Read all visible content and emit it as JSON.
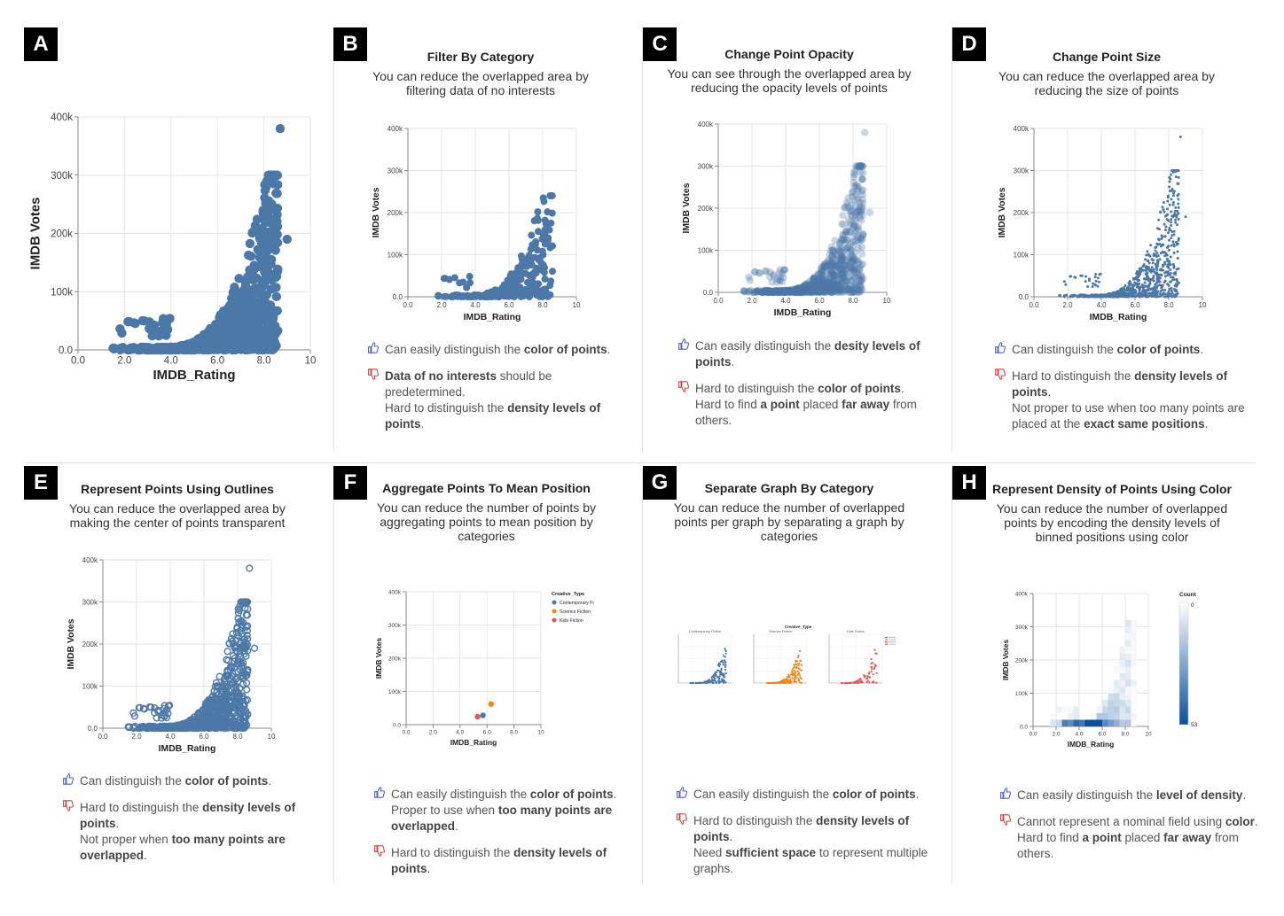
{
  "panels": {
    "A": {
      "badge": "A"
    },
    "B": {
      "badge": "B",
      "title": "Filter By Category",
      "desc1": "You can reduce the overlapped area by",
      "desc2": "filtering data of no interests"
    },
    "C": {
      "badge": "C",
      "title": "Change Point Opacity",
      "desc1": "You can see through the overlapped area by",
      "desc2": "reducing the opacity levels of points"
    },
    "D": {
      "badge": "D",
      "title": "Change Point Size",
      "desc1": "You can reduce the overlapped area by",
      "desc2": "reducing the size of points"
    },
    "E": {
      "badge": "E",
      "title": "Represent Points Using Outlines",
      "desc1": "You can reduce the overlapped area by",
      "desc2": "making the center of points transparent"
    },
    "F": {
      "badge": "F",
      "title": "Aggregate Points To Mean Position",
      "desc1": "You can reduce the number of points by",
      "desc2": "aggregating points to mean position by",
      "desc3": "categories"
    },
    "G": {
      "badge": "G",
      "title": "Separate Graph By Category",
      "desc1": "You can reduce the number of overlapped",
      "desc2": "points per graph by separating a graph by",
      "desc3": "categories"
    },
    "H": {
      "badge": "H",
      "title": "Represent Density of Points Using Color",
      "desc1": "You can reduce the number of overlapped",
      "desc2": "points by encoding the density levels of",
      "desc3": "binned positions using color"
    }
  },
  "notes": {
    "B": [
      {
        "type": "pro",
        "html": "Can easily distinguish the <b>color of points</b>."
      },
      {
        "type": "con",
        "html": "<b>Data of no interests</b> should be predetermined.<br>Hard to distinguish the <b>density levels of points</b>."
      }
    ],
    "C": [
      {
        "type": "pro",
        "html": "Can easily distinguish the <b>desity levels of points</b>."
      },
      {
        "type": "con",
        "html": "Hard to distinguish the <b>color of points</b>.<br>Hard to find <b>a point</b> placed <b>far away</b> from others."
      }
    ],
    "D": [
      {
        "type": "pro",
        "html": "Can distinguish the <b>color of points</b>."
      },
      {
        "type": "con",
        "html": "Hard to distinguish the <b>density levels of points</b>.<br>Not proper to use when too many points are placed at the <b>exact same positions</b>."
      }
    ],
    "E": [
      {
        "type": "pro",
        "html": "Can distinguish the <b>color of points</b>."
      },
      {
        "type": "con",
        "html": "Hard to distinguish the <b>density levels of points</b>.<br>Not proper when <b>too many points are overlapped</b>."
      }
    ],
    "F": [
      {
        "type": "pro",
        "html": "Can easily distinguish the <b>color of points</b>.<br>Proper to use when <b>too many points are overlapped</b>."
      },
      {
        "type": "con",
        "html": "Hard to distinguish the <b>density levels of points</b>."
      }
    ],
    "G": [
      {
        "type": "pro",
        "html": "Can easily distinguish the <b>color of points</b>."
      },
      {
        "type": "con",
        "html": "Hard to distinguish the <b>density levels of points</b>.<br>Need <b>sufficient space</b> to represent multiple graphs."
      }
    ],
    "H": [
      {
        "type": "pro",
        "html": "Can easily distinguish the <b>level of density</b>."
      },
      {
        "type": "con",
        "html": "Cannot represent a nominal field using <b>color</b>.<br>Hard to find <b>a point</b> placed <b>far away</b> from others."
      }
    ]
  },
  "icons": {
    "pro": "thumbs-up-icon",
    "con": "thumbs-down-icon"
  },
  "colors": {
    "point": "#4c78a8",
    "scifi": "#f58518",
    "kids": "#e45756",
    "heat_max": "#08519c",
    "heat_min": "#ffffff"
  },
  "chart_data": [
    {
      "panel": "A",
      "type": "scatter",
      "xlabel": "IMDB_Rating",
      "ylabel": "IMDB Votes",
      "xlim": [
        0,
        10
      ],
      "ylim": [
        0,
        400000
      ],
      "xticks": [
        "0.0",
        "2.0",
        "4.0",
        "6.0",
        "8.0",
        "10"
      ],
      "yticks": [
        "0.0",
        "100k",
        "200k",
        "300k",
        "400k"
      ],
      "highlights": [
        {
          "x": 8.7,
          "y": 380000
        },
        {
          "x": 8.1,
          "y": 280000
        },
        {
          "x": 9.0,
          "y": 190000
        }
      ]
    },
    {
      "panel": "B",
      "type": "scatter",
      "xlabel": "IMDB_Rating",
      "ylabel": "IMDB Votes",
      "xlim": [
        0,
        10
      ],
      "ylim": [
        0,
        400000
      ],
      "xticks": [
        "0.0",
        "2.0",
        "4.0",
        "6.0",
        "8.0",
        "10"
      ],
      "yticks": [
        "0.0",
        "100k",
        "200k",
        "300k",
        "400k"
      ]
    },
    {
      "panel": "C",
      "type": "scatter",
      "xlabel": "IMDB_Rating",
      "ylabel": "IMDB Votes",
      "xlim": [
        0,
        10
      ],
      "ylim": [
        0,
        400000
      ],
      "opacity": 0.3,
      "xticks": [
        "0.0",
        "2.0",
        "4.0",
        "6.0",
        "8.0",
        "10"
      ],
      "yticks": [
        "0.0",
        "100k",
        "200k",
        "300k",
        "400k"
      ]
    },
    {
      "panel": "D",
      "type": "scatter",
      "xlabel": "IMDB_Rating",
      "ylabel": "IMDB Votes",
      "xlim": [
        0,
        10
      ],
      "ylim": [
        0,
        400000
      ],
      "xticks": [
        "0.0",
        "2.0",
        "4.0",
        "6.0",
        "8.0",
        "10"
      ],
      "yticks": [
        "0.0",
        "100k",
        "200k",
        "300k",
        "400k"
      ]
    },
    {
      "panel": "E",
      "type": "scatter",
      "xlabel": "IMDB_Rating",
      "ylabel": "IMDB Votes",
      "xlim": [
        0,
        10
      ],
      "ylim": [
        0,
        400000
      ],
      "filled": false,
      "xticks": [
        "0.0",
        "2.0",
        "4.0",
        "6.0",
        "8.0",
        "10"
      ],
      "yticks": [
        "0.0",
        "100k",
        "200k",
        "300k",
        "400k"
      ]
    },
    {
      "panel": "F",
      "type": "scatter",
      "xlabel": "IMDB_Rating",
      "ylabel": "IMDB Votes",
      "xlim": [
        0,
        10
      ],
      "ylim": [
        0,
        400000
      ],
      "xticks": [
        "0.0",
        "2.0",
        "4.0",
        "6.0",
        "8.0",
        "10"
      ],
      "yticks": [
        "0.0",
        "100k",
        "200k",
        "300k",
        "400k"
      ],
      "legend_title": "Creative_Type",
      "series": [
        {
          "name": "Contemporary Fi",
          "x": 5.7,
          "y": 28000,
          "color": "#4c78a8"
        },
        {
          "name": "Science Fiction",
          "x": 6.3,
          "y": 62000,
          "color": "#f58518"
        },
        {
          "name": "Kids Fiction",
          "x": 5.3,
          "y": 24000,
          "color": "#e45756"
        }
      ]
    },
    {
      "panel": "G",
      "type": "scatter",
      "legend_title": "Creative_Type",
      "facets": [
        "Contemporary Fiction",
        "Science Fiction",
        "Kids Fiction"
      ]
    },
    {
      "panel": "H",
      "type": "heatmap",
      "xlabel": "IMDB_Rating",
      "ylabel": "IMDB Votes",
      "xlim": [
        0,
        10
      ],
      "ylim": [
        0,
        400000
      ],
      "xticks": [
        "0.0",
        "2.0",
        "4.0",
        "6.0",
        "8.0",
        "10"
      ],
      "yticks": [
        "0.0",
        "100k",
        "200k",
        "300k",
        "400k"
      ],
      "legend_title": "Count",
      "count_range": [
        0,
        53
      ],
      "count_range_labels": [
        "0",
        "53"
      ]
    }
  ]
}
